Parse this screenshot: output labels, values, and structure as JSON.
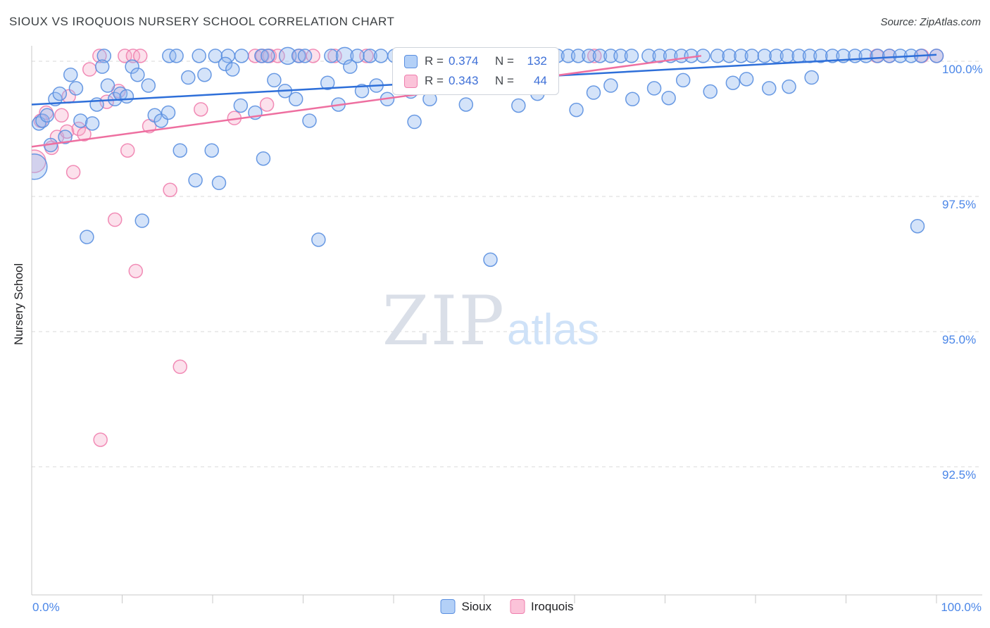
{
  "header": {
    "title": "SIOUX VS IROQUOIS NURSERY SCHOOL CORRELATION CHART",
    "source": "Source: ZipAtlas.com"
  },
  "watermark": {
    "part1": "ZIP",
    "part2": "atlas"
  },
  "stats_box": {
    "rows": [
      {
        "series": "Sioux",
        "r_label": "R =",
        "r_value": "0.374",
        "n_label": "N =",
        "n_value": "132"
      },
      {
        "series": "Iroquois",
        "r_label": "R =",
        "r_value": "0.343",
        "n_label": "N =",
        "n_value": "44"
      }
    ]
  },
  "axes": {
    "y_title": "Nursery School",
    "x_min_label": "0.0%",
    "x_max_label": "100.0%",
    "y_tick_labels": [
      "100.0%",
      "97.5%",
      "95.0%",
      "92.5%"
    ],
    "y_tick_values": [
      100,
      97.5,
      95,
      92.5
    ],
    "label_color": "#4a86e8",
    "grid_color": "#d9d9d9",
    "axis_color": "#c9c9c9"
  },
  "bottom_legend": [
    {
      "label": "Sioux",
      "fill": "#b3d0f7",
      "stroke": "#5a8fe0"
    },
    {
      "label": "Iroquois",
      "fill": "#fbc3d9",
      "stroke": "#ef7fae"
    }
  ],
  "chart_data": {
    "type": "scatter",
    "title": "SIOUX VS IROQUOIS NURSERY SCHOOL CORRELATION CHART",
    "xlabel": "",
    "ylabel": "Nursery School",
    "xlim": [
      0,
      100
    ],
    "ylim": [
      90.1,
      100.3
    ],
    "grid": true,
    "x_axis_ticks_pct": [
      10,
      20,
      30,
      40,
      50,
      60,
      70,
      80,
      90,
      100
    ],
    "series": [
      {
        "name": "Sioux",
        "r": 0.374,
        "n": 132,
        "fill": "#93b8f0",
        "stroke": "#5a8fe0",
        "opacity": 0.4,
        "trend": {
          "x1": 0,
          "y1": 99.2,
          "x2": 100,
          "y2": 100.12,
          "color": "#2e6fd9"
        },
        "points": [
          [
            8,
            100.1
          ],
          [
            15.2,
            100.1
          ],
          [
            16,
            100.1
          ],
          [
            18.5,
            100.1
          ],
          [
            20.3,
            100.1
          ],
          [
            21.7,
            100.1
          ],
          [
            23.2,
            100.1
          ],
          [
            25.4,
            100.1
          ],
          [
            26.1,
            100.1
          ],
          [
            28.3,
            100.1,
            12
          ],
          [
            29.5,
            100.1
          ],
          [
            30.2,
            100.1
          ],
          [
            33.1,
            100.1
          ],
          [
            34.6,
            100.1,
            12
          ],
          [
            36,
            100.1
          ],
          [
            37.4,
            100.1
          ],
          [
            38.6,
            100.1
          ],
          [
            40.1,
            100.1
          ],
          [
            41.3,
            100.1
          ],
          [
            43.9,
            100.1
          ],
          [
            45.6,
            100.1
          ],
          [
            46.8,
            100.1
          ],
          [
            48.2,
            100.1
          ],
          [
            50.1,
            100.1
          ],
          [
            52.3,
            100.1
          ],
          [
            53.8,
            100.1
          ],
          [
            55.2,
            100.1
          ],
          [
            56.7,
            100.1
          ],
          [
            58.1,
            100.1
          ],
          [
            59.3,
            100.1
          ],
          [
            60.4,
            100.1
          ],
          [
            61.6,
            100.1
          ],
          [
            62.8,
            100.1
          ],
          [
            64,
            100.1
          ],
          [
            65.1,
            100.1
          ],
          [
            66.3,
            100.1
          ],
          [
            68.2,
            100.1
          ],
          [
            69.4,
            100.1
          ],
          [
            70.6,
            100.1
          ],
          [
            71.8,
            100.1
          ],
          [
            72.9,
            100.1
          ],
          [
            74.2,
            100.1
          ],
          [
            75.8,
            100.1
          ],
          [
            77.1,
            100.1
          ],
          [
            78.4,
            100.1
          ],
          [
            79.6,
            100.1
          ],
          [
            81,
            100.1
          ],
          [
            82.3,
            100.1
          ],
          [
            83.5,
            100.1
          ],
          [
            84.8,
            100.1
          ],
          [
            86,
            100.1
          ],
          [
            87.2,
            100.1
          ],
          [
            88.5,
            100.1
          ],
          [
            89.7,
            100.1
          ],
          [
            91,
            100.1
          ],
          [
            92.2,
            100.1
          ],
          [
            93.5,
            100.1
          ],
          [
            94.8,
            100.1
          ],
          [
            96,
            100.1
          ],
          [
            97.2,
            100.1
          ],
          [
            98.3,
            100.1
          ],
          [
            100,
            100.1
          ],
          [
            0.3,
            98.05,
            18
          ],
          [
            0.8,
            98.85
          ],
          [
            1.2,
            98.9
          ],
          [
            1.7,
            99
          ],
          [
            2.1,
            98.45
          ],
          [
            2.6,
            99.3
          ],
          [
            3.1,
            99.4
          ],
          [
            3.7,
            98.6
          ],
          [
            4.3,
            99.75
          ],
          [
            4.9,
            99.5
          ],
          [
            5.4,
            98.9
          ],
          [
            6.1,
            96.75
          ],
          [
            6.7,
            98.85
          ],
          [
            7.2,
            99.2
          ],
          [
            7.8,
            99.9
          ],
          [
            8.4,
            99.55
          ],
          [
            9.2,
            99.3
          ],
          [
            9.8,
            99.4
          ],
          [
            10.5,
            99.35
          ],
          [
            11.1,
            99.9
          ],
          [
            11.7,
            99.75
          ],
          [
            12.2,
            97.05
          ],
          [
            12.9,
            99.55
          ],
          [
            13.6,
            99
          ],
          [
            14.3,
            98.9
          ],
          [
            15.1,
            99.05
          ],
          [
            16.4,
            98.35
          ],
          [
            17.3,
            99.7
          ],
          [
            18.1,
            97.8
          ],
          [
            19.1,
            99.75
          ],
          [
            19.9,
            98.35
          ],
          [
            20.7,
            97.75
          ],
          [
            21.4,
            99.95
          ],
          [
            22.2,
            99.85
          ],
          [
            23.1,
            99.18
          ],
          [
            24.7,
            99.05
          ],
          [
            25.6,
            98.2
          ],
          [
            26.8,
            99.65
          ],
          [
            28,
            99.45
          ],
          [
            29.2,
            99.3
          ],
          [
            30.7,
            98.9
          ],
          [
            31.7,
            96.7
          ],
          [
            32.7,
            99.6
          ],
          [
            33.9,
            99.2
          ],
          [
            35.2,
            99.9
          ],
          [
            36.5,
            99.45
          ],
          [
            38.1,
            99.55
          ],
          [
            39.3,
            99.3
          ],
          [
            41.9,
            99.44
          ],
          [
            42.3,
            98.88
          ],
          [
            44,
            99.3
          ],
          [
            46.7,
            99.62
          ],
          [
            48,
            99.2
          ],
          [
            50.7,
            96.33
          ],
          [
            53.8,
            99.18
          ],
          [
            55.9,
            99.4
          ],
          [
            60.2,
            99.1
          ],
          [
            62.1,
            99.42
          ],
          [
            64,
            99.55
          ],
          [
            66.4,
            99.3
          ],
          [
            68.8,
            99.5
          ],
          [
            70.4,
            99.32
          ],
          [
            72,
            99.65
          ],
          [
            75,
            99.44
          ],
          [
            77.5,
            99.6
          ],
          [
            79,
            99.67
          ],
          [
            81.5,
            99.5
          ],
          [
            83.7,
            99.53
          ],
          [
            86.2,
            99.7
          ],
          [
            97.9,
            96.95
          ]
        ]
      },
      {
        "name": "Iroquois",
        "r": 0.343,
        "n": 44,
        "fill": "#f7a8c8",
        "stroke": "#ef7fae",
        "opacity": 0.35,
        "trend": {
          "x1": 0,
          "y1": 98.42,
          "x2": 74,
          "y2": 100.1,
          "color": "#ee6fa0"
        },
        "points": [
          [
            7.5,
            100.1
          ],
          [
            10.3,
            100.1
          ],
          [
            11.2,
            100.1
          ],
          [
            12,
            100.1
          ],
          [
            24.7,
            100.1
          ],
          [
            25.5,
            100.1
          ],
          [
            26.3,
            100.1
          ],
          [
            27.2,
            100.1
          ],
          [
            29.6,
            100.1
          ],
          [
            31.1,
            100.1
          ],
          [
            33.5,
            100.1
          ],
          [
            37,
            100.1
          ],
          [
            44.5,
            100.1
          ],
          [
            50.3,
            100.1
          ],
          [
            62.2,
            100.1
          ],
          [
            93.4,
            100.1
          ],
          [
            94.8,
            100.1
          ],
          [
            98.4,
            100.1
          ],
          [
            100,
            100.1
          ],
          [
            0.3,
            98.15,
            16
          ],
          [
            1,
            98.9
          ],
          [
            1.6,
            99.05
          ],
          [
            2.2,
            98.4
          ],
          [
            2.8,
            98.6
          ],
          [
            3.3,
            99
          ],
          [
            3.9,
            98.7
          ],
          [
            4.1,
            99.35
          ],
          [
            4.6,
            97.95
          ],
          [
            5.2,
            98.75
          ],
          [
            5.8,
            98.65
          ],
          [
            6.4,
            99.85
          ],
          [
            7.6,
            93
          ],
          [
            8.3,
            99.25
          ],
          [
            9.2,
            97.07
          ],
          [
            9.6,
            99.45
          ],
          [
            10.6,
            98.35
          ],
          [
            11.5,
            96.12
          ],
          [
            13,
            98.8
          ],
          [
            15.3,
            97.62
          ],
          [
            16.4,
            94.35
          ],
          [
            18.7,
            99.11
          ],
          [
            22.4,
            98.95
          ],
          [
            26,
            99.2
          ],
          [
            53.8,
            99.54
          ]
        ]
      }
    ]
  }
}
